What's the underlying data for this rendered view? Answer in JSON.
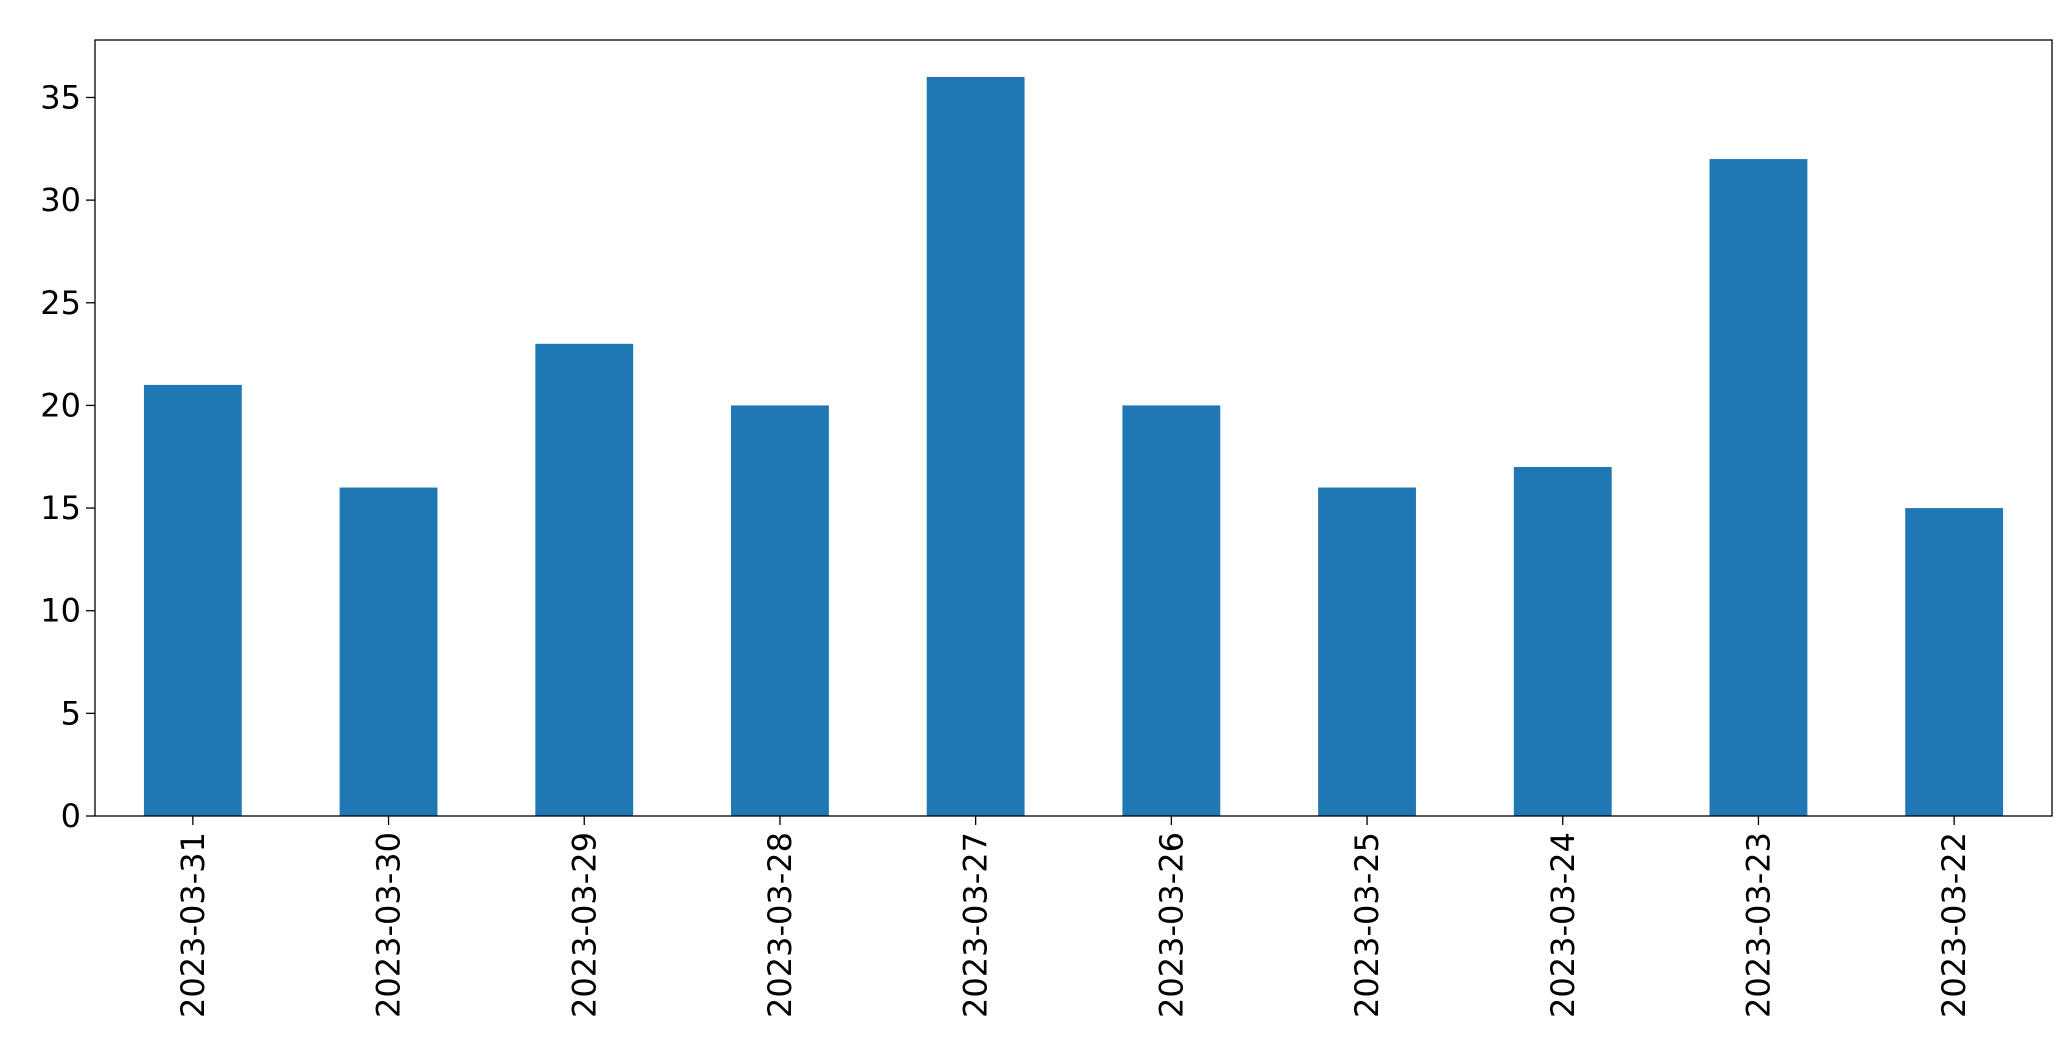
{
  "chart_data": {
    "type": "bar",
    "categories": [
      "2023-03-31",
      "2023-03-30",
      "2023-03-29",
      "2023-03-28",
      "2023-03-27",
      "2023-03-26",
      "2023-03-25",
      "2023-03-24",
      "2023-03-23",
      "2023-03-22"
    ],
    "values": [
      21,
      16,
      23,
      20,
      36,
      20,
      16,
      17,
      32,
      15
    ],
    "color": "#1f77b4",
    "ylim": [
      0,
      37.8
    ],
    "yticks": [
      0,
      5,
      10,
      15,
      20,
      25,
      30,
      35
    ],
    "grid": false
  }
}
